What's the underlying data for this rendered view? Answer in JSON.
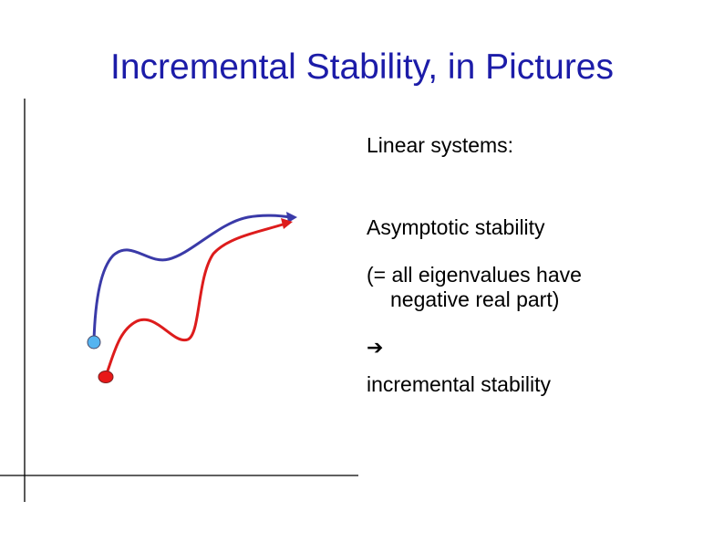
{
  "slide": {
    "title": "Incremental Stability, in Pictures",
    "title_color": "#1c1ca8"
  },
  "text": {
    "linear_systems": "Linear systems:",
    "asymptotic_stability": "Asymptotic stability",
    "eigen_line1": "(= all eigenvalues have",
    "eigen_line2": "negative real part)",
    "implies_symbol": "➔",
    "incremental_stability": "incremental stability"
  },
  "diagram": {
    "axis_color": "#000000",
    "trajectory_1_color": "#3a3aa8",
    "trajectory_1_start_color": "#55b4f0",
    "trajectory_2_color": "#dd1c1c",
    "trajectory_2_start_color": "#e81818"
  }
}
